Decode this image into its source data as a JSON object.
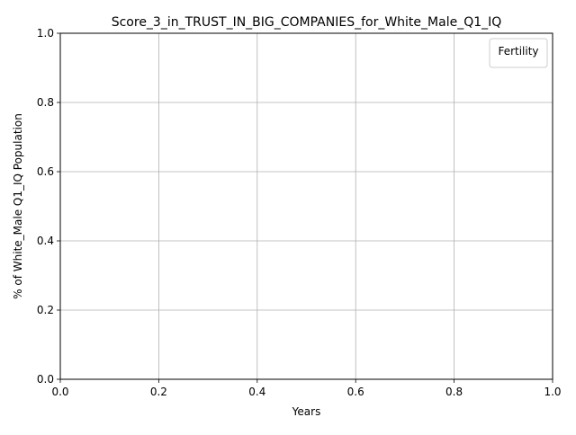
{
  "chart_data": {
    "type": "line",
    "title": "Score_3_in_TRUST_IN_BIG_COMPANIES_for_White_Male_Q1_IQ",
    "xlabel": "Years",
    "ylabel": "% of White_Male Q1_IQ Population",
    "xlim": [
      0.0,
      1.0
    ],
    "ylim": [
      0.0,
      1.0
    ],
    "x_ticks": [
      "0.0",
      "0.2",
      "0.4",
      "0.6",
      "0.8",
      "1.0"
    ],
    "y_ticks": [
      "0.0",
      "0.2",
      "0.4",
      "0.6",
      "0.8",
      "1.0"
    ],
    "grid": true,
    "legend": {
      "title": "Fertility",
      "placement": "top-right",
      "entries": []
    },
    "series": [],
    "colors": {
      "axes": "#000000",
      "grid": "#b0b0b0",
      "legend_border": "#cccccc",
      "background": "#ffffff"
    }
  }
}
